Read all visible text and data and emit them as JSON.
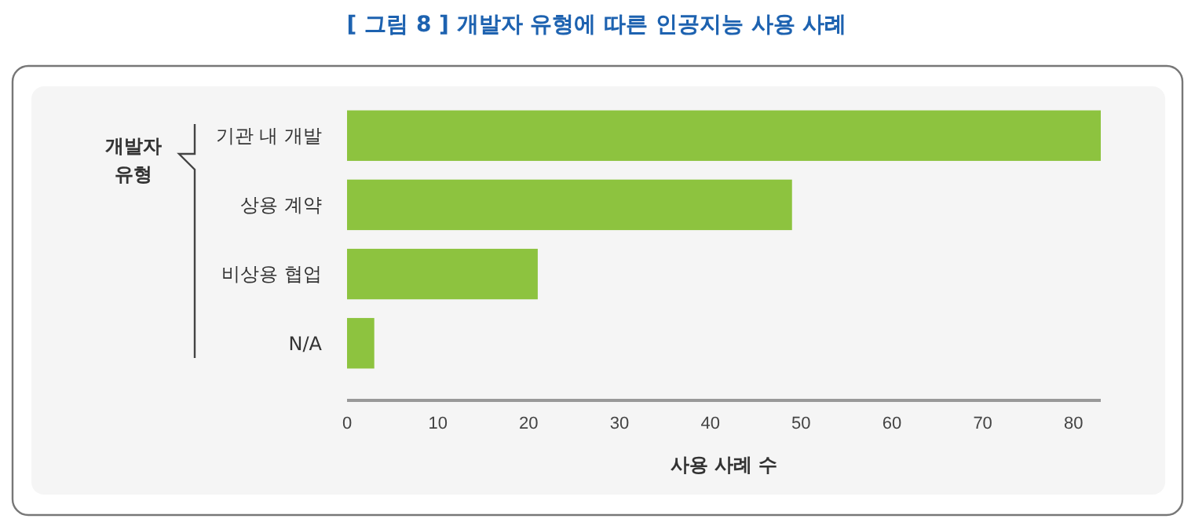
{
  "chart_data": {
    "type": "bar",
    "orientation": "horizontal",
    "title": "[ 그림 8 ] 개발자 유형에 따른 인공지능 사용 사례",
    "xlabel": "사용 사례 수",
    "ylabel": "개발자 유형",
    "categories": [
      "기관 내 개발",
      "상용 계약",
      "비상용 협업",
      "N/A"
    ],
    "values": [
      83,
      49,
      21,
      3
    ],
    "color": "#8dc33f",
    "xlim": [
      0,
      83
    ],
    "xticks": [
      0,
      10,
      20,
      30,
      40,
      50,
      60,
      70,
      80
    ]
  }
}
